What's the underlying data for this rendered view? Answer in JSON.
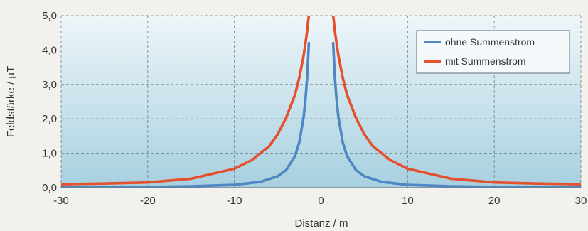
{
  "chart_data": {
    "type": "line",
    "xlabel": "Distanz / m",
    "ylabel": "Feldstärke / µT",
    "xlim": [
      -30,
      30
    ],
    "ylim": [
      0,
      5
    ],
    "xticks": [
      -30,
      -20,
      -10,
      0,
      10,
      20,
      30
    ],
    "xtick_labels": [
      "-30",
      "-20",
      "-10",
      "0",
      "10",
      "20",
      "30"
    ],
    "yticks": [
      0,
      1,
      2,
      3,
      4,
      5
    ],
    "ytick_labels": [
      "0,0",
      "1,0",
      "2,0",
      "3,0",
      "4,0",
      "5,0"
    ],
    "grid": true,
    "legend_position": "top-right",
    "series": [
      {
        "name": "ohne Summenstrom",
        "color": "#4f86c4",
        "x": [
          -30,
          -25,
          -20,
          -15,
          -10,
          -7,
          -5,
          -4,
          -3,
          -2.5,
          -2,
          -1.8,
          -1.6,
          -1.5,
          -1.4,
          1.4,
          1.5,
          1.6,
          1.8,
          2,
          2.5,
          3,
          4,
          5,
          7,
          10,
          15,
          20,
          25,
          30
        ],
        "y": [
          0.01,
          0.013,
          0.02,
          0.04,
          0.08,
          0.17,
          0.33,
          0.52,
          0.92,
          1.32,
          2.06,
          2.55,
          3.2,
          3.7,
          4.2,
          4.2,
          3.7,
          3.2,
          2.55,
          2.06,
          1.32,
          0.92,
          0.52,
          0.33,
          0.17,
          0.08,
          0.04,
          0.02,
          0.013,
          0.01
        ]
      },
      {
        "name": "mit Summenstrom",
        "color": "#e5502f",
        "x": [
          -30,
          -25,
          -20,
          -15,
          -10,
          -8,
          -6,
          -5,
          -4,
          -3,
          -2.5,
          -2,
          -1.8,
          -1.6,
          -1.5,
          -1.4,
          1.4,
          1.5,
          1.6,
          1.8,
          2,
          2.5,
          3,
          4,
          5,
          6,
          8,
          10,
          15,
          20,
          25,
          30
        ],
        "y": [
          0.1,
          0.12,
          0.15,
          0.26,
          0.55,
          0.8,
          1.2,
          1.55,
          2.05,
          2.7,
          3.2,
          3.85,
          4.2,
          4.55,
          4.8,
          5.0,
          5.0,
          4.8,
          4.55,
          4.2,
          3.85,
          3.2,
          2.7,
          2.05,
          1.55,
          1.2,
          0.8,
          0.55,
          0.26,
          0.15,
          0.12,
          0.1
        ]
      }
    ]
  }
}
